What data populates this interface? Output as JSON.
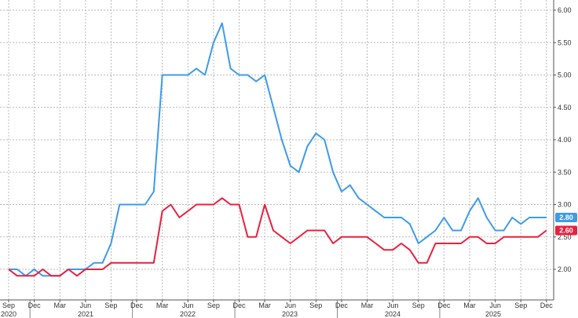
{
  "chart_data": {
    "type": "line",
    "title": "",
    "xlabel": "",
    "ylabel": "",
    "ylim": [
      1.5,
      6.0
    ],
    "y_ticks": [
      "2.00",
      "2.50",
      "3.00",
      "3.50",
      "4.00",
      "4.50",
      "5.00",
      "5.50",
      "6.00"
    ],
    "y_tick_values": [
      2.0,
      2.5,
      3.0,
      3.5,
      4.0,
      4.5,
      5.0,
      5.5,
      6.0
    ],
    "x_month_labels": [
      "Sep",
      "Dec",
      "Mar",
      "Jun",
      "Sep",
      "Dec",
      "Mar",
      "Jun",
      "Sep",
      "Dec",
      "Mar",
      "Jun",
      "Sep",
      "Dec",
      "Mar",
      "Jun",
      "Sep",
      "Dec",
      "Mar",
      "Jun",
      "Sep",
      "Dec"
    ],
    "x_year_labels": [
      "2020",
      "2021",
      "2022",
      "2023",
      "2024",
      "2025"
    ],
    "x_start": "2020-09",
    "x_end": "2025-12",
    "grid": true,
    "y_axis_side": "right",
    "legend": "none",
    "series": [
      {
        "color": "#3d9be9",
        "last_value_label": "2.80",
        "x": [
          "2020-09",
          "2020-10",
          "2020-11",
          "2020-12",
          "2021-01",
          "2021-02",
          "2021-03",
          "2021-04",
          "2021-05",
          "2021-06",
          "2021-07",
          "2021-08",
          "2021-09",
          "2021-10",
          "2021-11",
          "2021-12",
          "2022-01",
          "2022-02",
          "2022-03",
          "2022-04",
          "2022-05",
          "2022-06",
          "2022-07",
          "2022-08",
          "2022-09",
          "2022-10",
          "2022-11",
          "2022-12",
          "2023-01",
          "2023-02",
          "2023-03",
          "2023-04",
          "2023-05",
          "2023-06",
          "2023-07",
          "2023-08",
          "2023-09",
          "2023-10",
          "2023-11",
          "2023-12",
          "2024-01",
          "2024-02",
          "2024-03",
          "2024-04",
          "2024-05",
          "2024-06",
          "2024-07",
          "2024-08",
          "2024-09",
          "2024-10",
          "2024-11",
          "2024-12",
          "2025-01",
          "2025-02",
          "2025-03",
          "2025-04",
          "2025-05",
          "2025-06",
          "2025-07",
          "2025-08",
          "2025-09",
          "2025-10",
          "2025-11",
          "2025-12"
        ],
        "values": [
          2.0,
          2.0,
          1.9,
          2.0,
          1.9,
          1.9,
          1.9,
          2.0,
          2.0,
          2.0,
          2.1,
          2.1,
          2.4,
          3.0,
          3.0,
          3.0,
          3.0,
          3.2,
          5.0,
          5.0,
          5.0,
          5.0,
          5.1,
          5.0,
          5.5,
          5.8,
          5.1,
          5.0,
          5.0,
          4.9,
          5.0,
          4.5,
          4.0,
          3.6,
          3.5,
          3.9,
          4.1,
          4.0,
          3.5,
          3.2,
          3.3,
          3.1,
          3.0,
          2.9,
          2.8,
          2.8,
          2.8,
          2.7,
          2.4,
          2.5,
          2.6,
          2.8,
          2.6,
          2.6,
          2.9,
          3.1,
          2.8,
          2.6,
          2.6,
          2.8,
          2.7,
          2.8,
          2.8,
          2.8
        ]
      },
      {
        "color": "#e8213f",
        "last_value_label": "2.60",
        "x": [
          "2020-09",
          "2020-10",
          "2020-11",
          "2020-12",
          "2021-01",
          "2021-02",
          "2021-03",
          "2021-04",
          "2021-05",
          "2021-06",
          "2021-07",
          "2021-08",
          "2021-09",
          "2021-10",
          "2021-11",
          "2021-12",
          "2022-01",
          "2022-02",
          "2022-03",
          "2022-04",
          "2022-05",
          "2022-06",
          "2022-07",
          "2022-08",
          "2022-09",
          "2022-10",
          "2022-11",
          "2022-12",
          "2023-01",
          "2023-02",
          "2023-03",
          "2023-04",
          "2023-05",
          "2023-06",
          "2023-07",
          "2023-08",
          "2023-09",
          "2023-10",
          "2023-11",
          "2023-12",
          "2024-01",
          "2024-02",
          "2024-03",
          "2024-04",
          "2024-05",
          "2024-06",
          "2024-07",
          "2024-08",
          "2024-09",
          "2024-10",
          "2024-11",
          "2024-12",
          "2025-01",
          "2025-02",
          "2025-03",
          "2025-04",
          "2025-05",
          "2025-06",
          "2025-07",
          "2025-08",
          "2025-09",
          "2025-10",
          "2025-11",
          "2025-12"
        ],
        "values": [
          2.0,
          1.9,
          1.9,
          1.9,
          2.0,
          1.9,
          1.9,
          2.0,
          1.9,
          2.0,
          2.0,
          2.0,
          2.1,
          2.1,
          2.1,
          2.1,
          2.1,
          2.1,
          2.9,
          3.0,
          2.8,
          2.9,
          3.0,
          3.0,
          3.0,
          3.1,
          3.0,
          3.0,
          2.5,
          2.5,
          3.0,
          2.6,
          2.5,
          2.4,
          2.5,
          2.6,
          2.6,
          2.6,
          2.4,
          2.5,
          2.5,
          2.5,
          2.5,
          2.4,
          2.3,
          2.3,
          2.4,
          2.3,
          2.1,
          2.1,
          2.4,
          2.4,
          2.4,
          2.4,
          2.5,
          2.5,
          2.4,
          2.4,
          2.5,
          2.5,
          2.5,
          2.5,
          2.5,
          2.6
        ]
      }
    ]
  }
}
